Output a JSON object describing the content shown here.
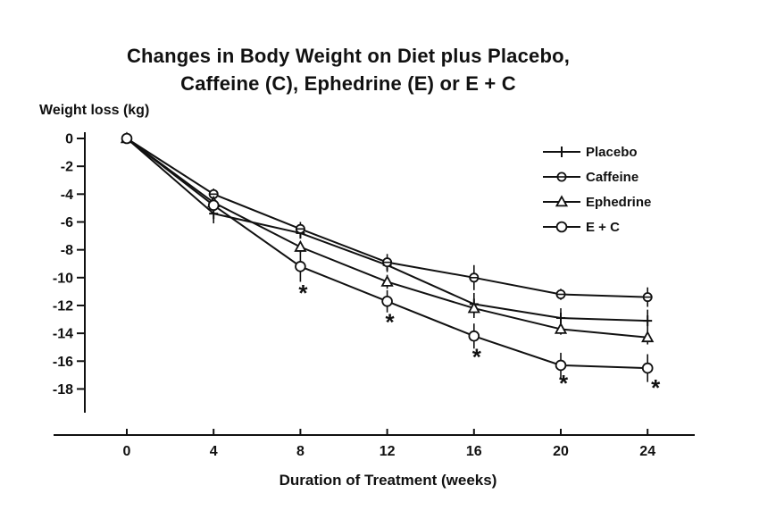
{
  "chart_data": {
    "type": "line",
    "title_line1": "Changes in Body Weight on Diet plus Placebo,",
    "title_line2": "Caffeine (C), Ephedrine (E) or E + C",
    "ylabel": "Weight loss (kg)",
    "xlabel": "Duration of Treatment (weeks)",
    "x": [
      0,
      4,
      8,
      12,
      16,
      20,
      24
    ],
    "x_ticks": [
      "0",
      "4",
      "8",
      "12",
      "16",
      "20",
      "24"
    ],
    "y_ticks": [
      0,
      -2,
      -4,
      -6,
      -8,
      -10,
      -12,
      -14,
      -16,
      -18
    ],
    "ylim": [
      0,
      -18
    ],
    "grid": false,
    "legend_position": "top-right",
    "series": [
      {
        "name": "Placebo",
        "marker": "plus",
        "values": [
          0,
          -5.4,
          -6.8,
          -9.1,
          -11.9,
          -12.9,
          -13.1
        ],
        "errors": [
          0,
          0.7,
          0.4,
          0.5,
          0.8,
          0.7,
          0.8
        ]
      },
      {
        "name": "Caffeine",
        "marker": "circle-line",
        "values": [
          0,
          -4.0,
          -6.5,
          -8.9,
          -10.0,
          -11.2,
          -11.4
        ],
        "errors": [
          0,
          0.4,
          0.5,
          0.6,
          0.9,
          0.4,
          0.7
        ]
      },
      {
        "name": "Ephedrine",
        "marker": "triangle",
        "values": [
          0,
          -4.6,
          -7.8,
          -10.3,
          -12.2,
          -13.7,
          -14.3
        ],
        "errors": [
          0,
          0.4,
          0.4,
          0.5,
          0.7,
          0.4,
          0.5
        ]
      },
      {
        "name": "E + C",
        "marker": "circle",
        "values": [
          0,
          -4.8,
          -9.2,
          -11.7,
          -14.2,
          -16.3,
          -16.5
        ],
        "errors": [
          0,
          0.4,
          1.1,
          0.8,
          0.9,
          0.9,
          1.0
        ]
      }
    ],
    "annotations": [
      {
        "symbol": "*",
        "week": 8,
        "value": -10.9,
        "dx": 3
      },
      {
        "symbol": "*",
        "week": 12,
        "value": -13.0,
        "dx": 3
      },
      {
        "symbol": "*",
        "week": 16,
        "value": -15.5,
        "dx": 3
      },
      {
        "symbol": "*",
        "week": 20,
        "value": -17.4,
        "dx": 3
      },
      {
        "symbol": "*",
        "week": 24,
        "value": -17.7,
        "dx": 9
      }
    ]
  },
  "colors": {
    "ink": "#111111",
    "background": "#ffffff"
  }
}
